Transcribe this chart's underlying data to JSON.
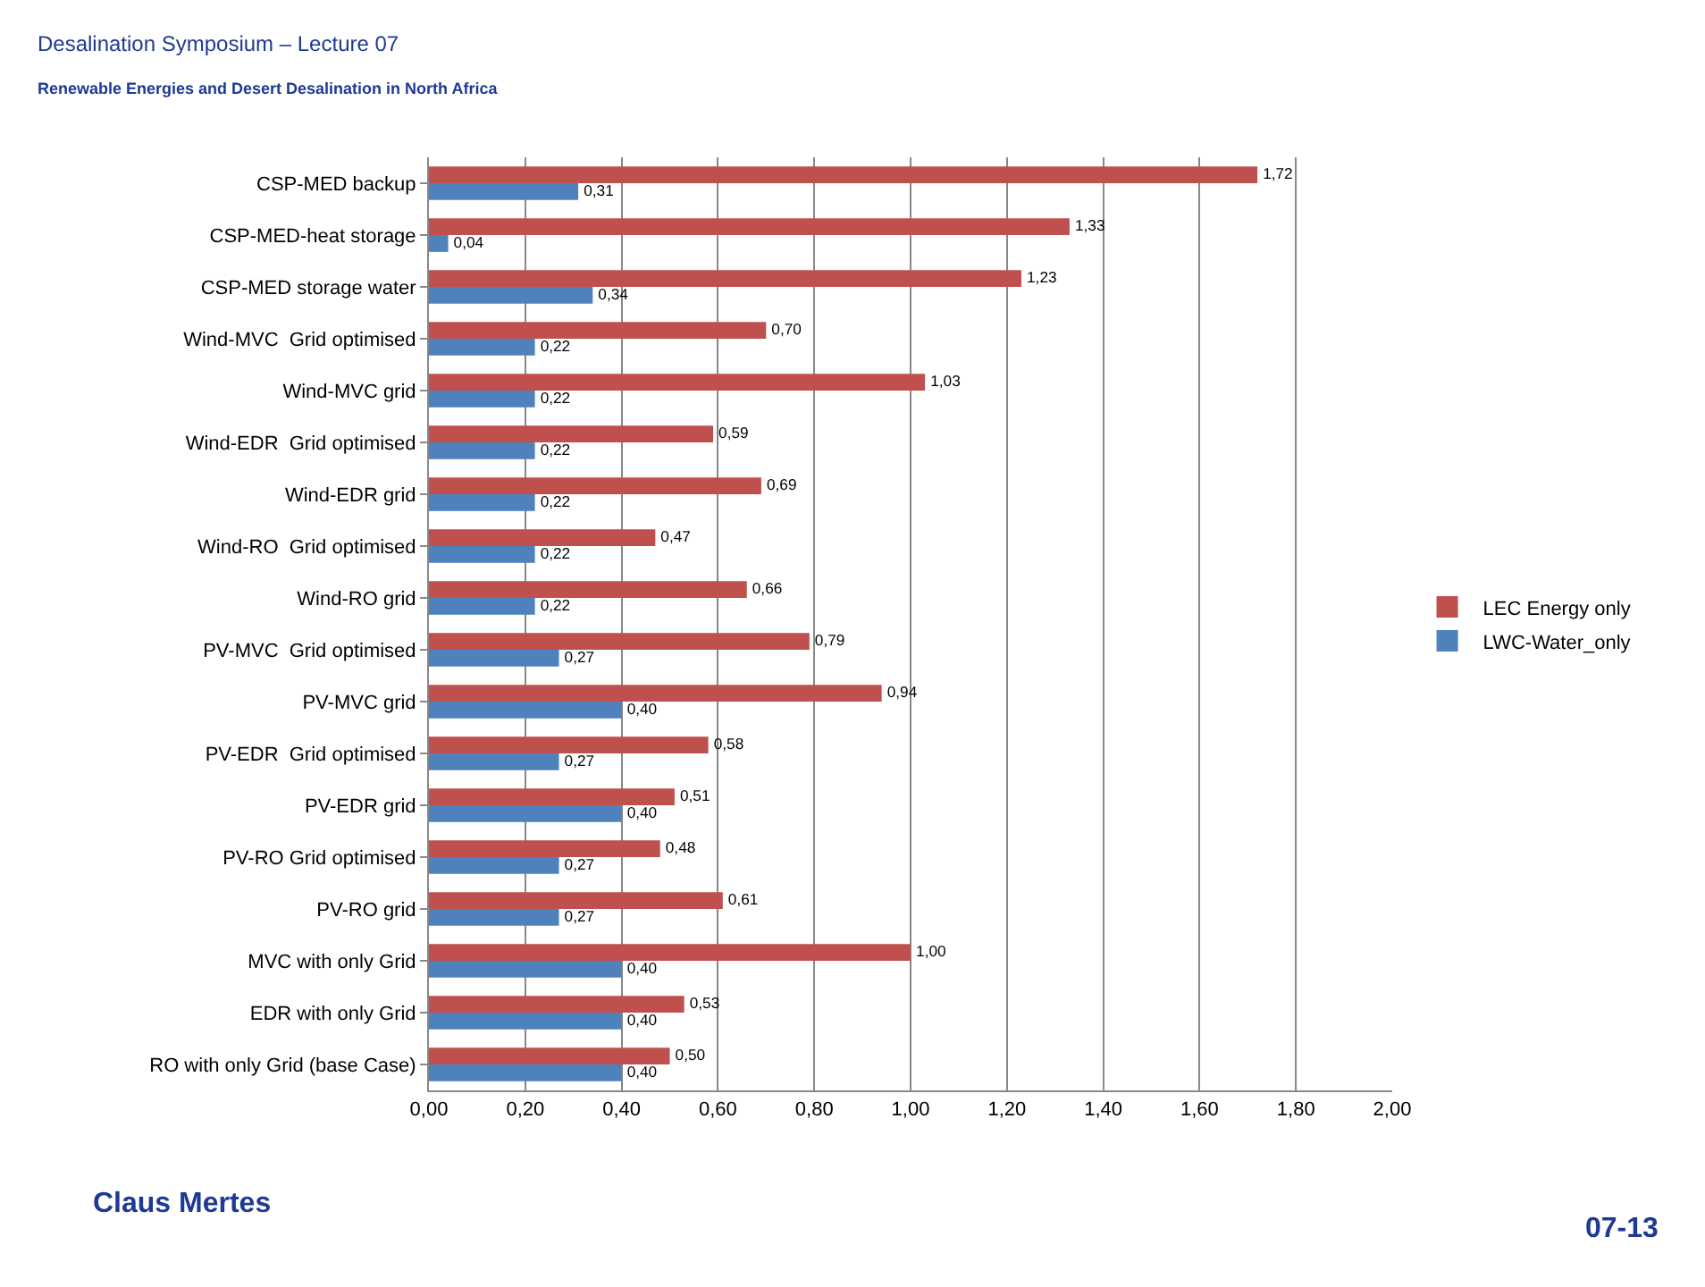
{
  "chart_data": {
    "type": "bar",
    "orientation": "horizontal",
    "title": "Desalination Symposium – Lecture 07",
    "subtitle": "Renewable Energies and Desert Desalination in North Africa",
    "categories": [
      "CSP-MED backup",
      "CSP-MED-heat storage",
      "CSP-MED storage water",
      "Wind-MVC  Grid optimised",
      "Wind-MVC grid",
      "Wind-EDR  Grid optimised",
      "Wind-EDR grid",
      "Wind-RO  Grid optimised",
      "Wind-RO grid",
      "PV-MVC  Grid optimised",
      "PV-MVC grid",
      "PV-EDR  Grid optimised",
      "PV-EDR grid",
      "PV-RO Grid optimised",
      "PV-RO grid",
      "MVC with only Grid",
      "EDR with only Grid",
      "RO with only Grid (base Case)"
    ],
    "series": [
      {
        "name": "LEC Energy only",
        "color": "#c0504d",
        "values": [
          1.72,
          1.33,
          1.23,
          0.7,
          1.03,
          0.59,
          0.69,
          0.47,
          0.66,
          0.79,
          0.94,
          0.58,
          0.51,
          0.48,
          0.61,
          1.0,
          0.53,
          0.5
        ],
        "value_labels": [
          "1,72",
          "1,33",
          "1,23",
          "0,70",
          "1,03",
          "0,59",
          "0,69",
          "0,47",
          "0,66",
          "0,79",
          "0,94",
          "0,58",
          "0,51",
          "0,48",
          "0,61",
          "1,00",
          "0,53",
          "0,50"
        ]
      },
      {
        "name": "LWC-Water_only",
        "color": "#4f81bd",
        "values": [
          0.31,
          0.04,
          0.34,
          0.22,
          0.22,
          0.22,
          0.22,
          0.22,
          0.22,
          0.27,
          0.4,
          0.27,
          0.4,
          0.27,
          0.27,
          0.4,
          0.4,
          0.4
        ],
        "value_labels": [
          "0,31",
          "0,04",
          "0,34",
          "0,22",
          "0,22",
          "0,22",
          "0,22",
          "0,22",
          "0,22",
          "0,27",
          "0,40",
          "0,27",
          "0,40",
          "0,27",
          "0,27",
          "0,40",
          "0,40",
          "0,40"
        ]
      }
    ],
    "xlim": [
      0,
      2
    ],
    "xticks": [
      {
        "value": 0,
        "label": "0,00"
      },
      {
        "value": 0.2,
        "label": "0,20"
      },
      {
        "value": 0.4,
        "label": "0,40"
      },
      {
        "value": 0.6,
        "label": "0,60"
      },
      {
        "value": 0.8,
        "label": "0,80"
      },
      {
        "value": 1,
        "label": "1,00"
      },
      {
        "value": 1.2,
        "label": "1,20"
      },
      {
        "value": 1.4,
        "label": "1,40"
      },
      {
        "value": 1.6,
        "label": "1,60"
      },
      {
        "value": 1.8,
        "label": "1,80"
      },
      {
        "value": 2,
        "label": "2,00"
      }
    ],
    "grid": "x",
    "legend": "right",
    "annotations": [
      "Claus Mertes",
      "07-13"
    ]
  }
}
